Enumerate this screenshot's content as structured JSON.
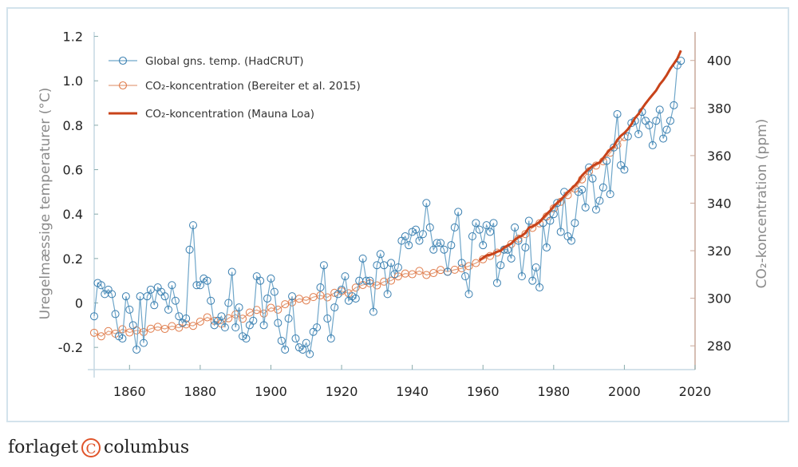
{
  "chart_data": {
    "type": "line",
    "xlim": [
      1850,
      2020
    ],
    "x_ticks": [
      "1860",
      "1880",
      "1900",
      "1920",
      "1940",
      "1960",
      "1980",
      "2000",
      "2020"
    ],
    "ylabel_left": "Uregelmæssige temperaturer (°C)",
    "ylim_left": [
      -0.3,
      1.22
    ],
    "y_ticks_left": [
      "-0.2",
      "0",
      "0.2",
      "0.4",
      "0.6",
      "0.8",
      "1.0",
      "1.2"
    ],
    "ylabel_right": "CO₂-koncentration (ppm)",
    "ylim_right": [
      270,
      412
    ],
    "y_ticks_right": [
      "280",
      "300",
      "320",
      "340",
      "360",
      "380",
      "400"
    ],
    "legend_position": "top-left",
    "grid": false,
    "colors": {
      "temp": "#3a7fb0",
      "temp_line": "#6fa6c9",
      "bereiter": "#e07b4a",
      "mauna_loa": "#c8431a",
      "right_axis": "#c9a99a",
      "left_axis": "#c5d8e4"
    },
    "series": [
      {
        "name": "Global gns. temp. (HadCRUT)",
        "axis": "left",
        "marker": "circle",
        "x_start": 1850,
        "values": [
          -0.06,
          0.09,
          0.08,
          0.04,
          0.06,
          0.04,
          -0.05,
          -0.15,
          -0.16,
          0.03,
          -0.03,
          -0.1,
          -0.21,
          0.03,
          -0.18,
          0.03,
          0.06,
          -0.01,
          0.07,
          0.05,
          0.03,
          -0.03,
          0.08,
          0.01,
          -0.06,
          -0.09,
          -0.07,
          0.24,
          0.35,
          0.08,
          0.08,
          0.11,
          0.1,
          0.01,
          -0.1,
          -0.08,
          -0.06,
          -0.11,
          0.0,
          0.14,
          -0.11,
          -0.02,
          -0.15,
          -0.16,
          -0.1,
          -0.08,
          0.12,
          0.1,
          -0.1,
          0.02,
          0.11,
          0.05,
          -0.09,
          -0.17,
          -0.21,
          -0.07,
          0.03,
          -0.16,
          -0.2,
          -0.21,
          -0.18,
          -0.23,
          -0.13,
          -0.11,
          0.07,
          0.17,
          -0.07,
          -0.16,
          -0.02,
          0.04,
          0.06,
          0.12,
          0.01,
          0.03,
          0.02,
          0.1,
          0.2,
          0.1,
          0.1,
          -0.04,
          0.17,
          0.22,
          0.17,
          0.04,
          0.18,
          0.13,
          0.16,
          0.28,
          0.3,
          0.26,
          0.32,
          0.33,
          0.28,
          0.31,
          0.45,
          0.34,
          0.24,
          0.27,
          0.27,
          0.24,
          0.14,
          0.26,
          0.34,
          0.41,
          0.18,
          0.12,
          0.04,
          0.3,
          0.36,
          0.33,
          0.26,
          0.35,
          0.32,
          0.36,
          0.09,
          0.17,
          0.24,
          0.24,
          0.2,
          0.34,
          0.28,
          0.12,
          0.25,
          0.37,
          0.1,
          0.16,
          0.07,
          0.36,
          0.25,
          0.37,
          0.4,
          0.45,
          0.32,
          0.5,
          0.3,
          0.28,
          0.36,
          0.5,
          0.51,
          0.43,
          0.61,
          0.56,
          0.42,
          0.46,
          0.52,
          0.64,
          0.49,
          0.7,
          0.85,
          0.62,
          0.6,
          0.75,
          0.81,
          0.82,
          0.76,
          0.86,
          0.82,
          0.8,
          0.71,
          0.82,
          0.87,
          0.74,
          0.78,
          0.82,
          0.89,
          1.07,
          1.09
        ]
      },
      {
        "name": "CO₂-koncentration (Bereiter et al. 2015)",
        "axis": "right",
        "marker": "circle",
        "x": [
          1850,
          1852,
          1854,
          1856,
          1858,
          1860,
          1862,
          1864,
          1866,
          1868,
          1870,
          1872,
          1874,
          1876,
          1878,
          1880,
          1882,
          1884,
          1886,
          1888,
          1890,
          1892,
          1894,
          1896,
          1898,
          1900,
          1902,
          1904,
          1906,
          1908,
          1910,
          1912,
          1914,
          1916,
          1918,
          1920,
          1922,
          1924,
          1926,
          1928,
          1930,
          1932,
          1934,
          1936,
          1938,
          1940,
          1942,
          1944,
          1946,
          1948,
          1950,
          1952,
          1954,
          1956,
          1958,
          1960,
          1962,
          1964,
          1966,
          1968,
          1970,
          1972,
          1974,
          1976,
          1978,
          1980,
          1982,
          1984,
          1986,
          1988,
          1990,
          1992,
          1994,
          1996,
          1998,
          2000
        ],
        "values": [
          285.5,
          284.0,
          286.2,
          285.1,
          287.0,
          285.6,
          286.5,
          285.8,
          287.2,
          288.0,
          287.1,
          288.3,
          287.6,
          289.0,
          288.4,
          290.2,
          292.0,
          290.5,
          289.3,
          291.6,
          293.2,
          291.4,
          294.0,
          295.1,
          293.6,
          296.0,
          295.2,
          297.5,
          298.3,
          299.8,
          299.1,
          300.5,
          301.2,
          300.4,
          302.3,
          303.0,
          302.1,
          304.5,
          305.6,
          306.3,
          305.4,
          307.0,
          307.4,
          309.2,
          310.4,
          310.1,
          311.5,
          309.8,
          310.6,
          311.9,
          311.2,
          312.0,
          312.6,
          313.5,
          314.8,
          316.4,
          317.8,
          319.2,
          320.5,
          322.8,
          325.1,
          327.0,
          329.6,
          331.5,
          334.4,
          337.8,
          340.6,
          343.4,
          346.1,
          350.0,
          353.4,
          355.8,
          357.6,
          361.2,
          364.5,
          367.8
        ]
      },
      {
        "name": "CO₂-koncentration (Mauna Loa)",
        "axis": "right",
        "marker": "none",
        "x_start": 1959,
        "values": [
          316.0,
          317.0,
          318.0,
          318.3,
          318.8,
          319.6,
          320.0,
          321.4,
          322.2,
          323.0,
          324.6,
          325.7,
          326.3,
          327.5,
          329.7,
          330.2,
          331.1,
          332.1,
          333.8,
          335.4,
          336.8,
          338.7,
          340.1,
          341.4,
          343.0,
          344.6,
          346.0,
          347.4,
          349.2,
          351.6,
          353.1,
          354.4,
          355.6,
          356.5,
          357.1,
          358.9,
          360.9,
          362.6,
          363.8,
          366.6,
          368.3,
          369.5,
          371.1,
          373.2,
          375.8,
          377.5,
          379.8,
          381.9,
          383.8,
          385.6,
          387.4,
          389.9,
          391.7,
          393.9,
          396.5,
          398.6,
          400.8,
          404.2
        ]
      }
    ]
  },
  "logo": {
    "left": "forlaget",
    "symbol": "C",
    "right": "columbus"
  }
}
